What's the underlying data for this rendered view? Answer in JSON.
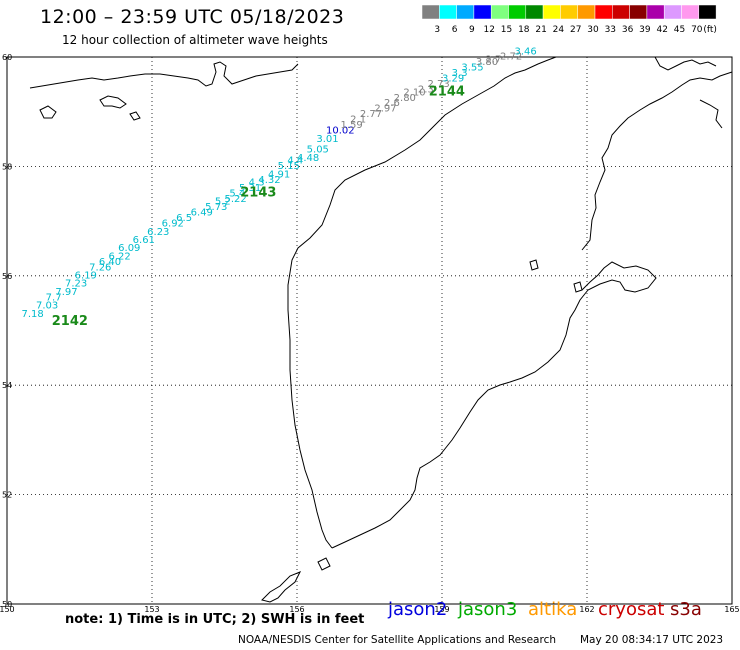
{
  "header": {
    "title": "12:00 – 23:59 UTC 05/18/2023",
    "subtitle": "12 hour collection of altimeter wave heights"
  },
  "legend": {
    "ticks": [
      "3",
      "6",
      "9",
      "12",
      "15",
      "18",
      "21",
      "24",
      "27",
      "30",
      "33",
      "36",
      "39",
      "42",
      "45",
      "70",
      "(ft)"
    ],
    "colors": [
      "#808080",
      "#00ffff",
      "#00aaff",
      "#0000ff",
      "#7fff7f",
      "#00cc00",
      "#008800",
      "#ffff00",
      "#ffcc00",
      "#ff9900",
      "#ff0000",
      "#cc0000",
      "#880000",
      "#aa00aa",
      "#dd99ff",
      "#ff99ee",
      "#000000"
    ]
  },
  "axes": {
    "lon_labels": [
      "150",
      "153",
      "156",
      "159",
      "162",
      "165"
    ],
    "lat_labels": [
      "60",
      "58",
      "56",
      "54",
      "52",
      "50"
    ]
  },
  "tracks": [
    {
      "pass": "2142",
      "label_color": "#1a8a1a"
    },
    {
      "pass": "2143",
      "label_color": "#1a8a1a"
    },
    {
      "pass": "2144",
      "label_color": "#1a8a1a"
    }
  ],
  "points": [
    {
      "lon": 150.3,
      "lat": 55.25,
      "value": "7.18",
      "color": "#00bbcc"
    },
    {
      "lon": 150.6,
      "lat": 55.4,
      "value": "7.03",
      "color": "#00bbcc"
    },
    {
      "lon": 150.8,
      "lat": 55.55,
      "value": "7.7",
      "color": "#00bbcc"
    },
    {
      "lon": 151.0,
      "lat": 55.65,
      "value": "7.97",
      "color": "#00bbcc"
    },
    {
      "lon": 151.2,
      "lat": 55.8,
      "value": "7.23",
      "color": "#00bbcc"
    },
    {
      "lon": 151.4,
      "lat": 55.95,
      "value": "6.19",
      "color": "#00bbcc"
    },
    {
      "lon": 151.7,
      "lat": 56.1,
      "value": "7.26",
      "color": "#00bbcc"
    },
    {
      "lon": 151.9,
      "lat": 56.2,
      "value": "6.40",
      "color": "#00bbcc"
    },
    {
      "lon": 152.1,
      "lat": 56.3,
      "value": "6.22",
      "color": "#00bbcc"
    },
    {
      "lon": 152.3,
      "lat": 56.45,
      "value": "6.09",
      "color": "#00bbcc"
    },
    {
      "lon": 152.6,
      "lat": 56.6,
      "value": "6.61",
      "color": "#00bbcc"
    },
    {
      "lon": 152.9,
      "lat": 56.75,
      "value": "6.23",
      "color": "#00bbcc"
    },
    {
      "lon": 153.2,
      "lat": 56.9,
      "value": "6.92",
      "color": "#00bbcc"
    },
    {
      "lon": 153.5,
      "lat": 57.0,
      "value": "6.5",
      "color": "#00bbcc"
    },
    {
      "lon": 153.8,
      "lat": 57.1,
      "value": "6.49",
      "color": "#00bbcc"
    },
    {
      "lon": 154.1,
      "lat": 57.2,
      "value": "5.73",
      "color": "#00bbcc"
    },
    {
      "lon": 154.3,
      "lat": 57.3,
      "value": "5.2",
      "color": "#00bbcc"
    },
    {
      "lon": 154.5,
      "lat": 57.35,
      "value": "5.22",
      "color": "#00bbcc"
    },
    {
      "lon": 154.6,
      "lat": 57.45,
      "value": "5.4",
      "color": "#00bbcc"
    },
    {
      "lon": 154.8,
      "lat": 57.55,
      "value": "5.31",
      "color": "#00bbcc"
    },
    {
      "lon": 155.0,
      "lat": 57.65,
      "value": "4.3",
      "color": "#00bbcc"
    },
    {
      "lon": 155.2,
      "lat": 57.7,
      "value": "4.32",
      "color": "#00bbcc"
    },
    {
      "lon": 155.4,
      "lat": 57.8,
      "value": "4.91",
      "color": "#00bbcc"
    },
    {
      "lon": 155.6,
      "lat": 57.95,
      "value": "5.15",
      "color": "#00bbcc"
    },
    {
      "lon": 155.8,
      "lat": 58.05,
      "value": "4.4",
      "color": "#00bbcc"
    },
    {
      "lon": 156.0,
      "lat": 58.1,
      "value": "4.48",
      "color": "#00bbcc"
    },
    {
      "lon": 156.2,
      "lat": 58.25,
      "value": "5.05",
      "color": "#00bbcc"
    },
    {
      "lon": 156.4,
      "lat": 58.45,
      "value": "3.01",
      "color": "#00bbcc"
    },
    {
      "lon": 156.6,
      "lat": 58.6,
      "value": "10.02",
      "color": "#0000cc"
    },
    {
      "lon": 156.9,
      "lat": 58.7,
      "value": "1.59",
      "color": "#808080"
    },
    {
      "lon": 157.1,
      "lat": 58.8,
      "value": "2.1",
      "color": "#808080"
    },
    {
      "lon": 157.3,
      "lat": 58.9,
      "value": "2.77",
      "color": "#808080"
    },
    {
      "lon": 157.6,
      "lat": 59.0,
      "value": "2.97",
      "color": "#808080"
    },
    {
      "lon": 157.8,
      "lat": 59.1,
      "value": "2.6",
      "color": "#808080"
    },
    {
      "lon": 158.0,
      "lat": 59.2,
      "value": "2.80",
      "color": "#808080"
    },
    {
      "lon": 158.2,
      "lat": 59.3,
      "value": "2.10",
      "color": "#808080"
    },
    {
      "lon": 158.5,
      "lat": 59.35,
      "value": "2.3",
      "color": "#808080"
    },
    {
      "lon": 158.7,
      "lat": 59.45,
      "value": "2.73",
      "color": "#808080"
    },
    {
      "lon": 159.0,
      "lat": 59.55,
      "value": "3.29",
      "color": "#00bbcc"
    },
    {
      "lon": 159.2,
      "lat": 59.65,
      "value": "3.3",
      "color": "#00bbcc"
    },
    {
      "lon": 159.4,
      "lat": 59.75,
      "value": "3.55",
      "color": "#00bbcc"
    },
    {
      "lon": 159.7,
      "lat": 59.85,
      "value": "3.80",
      "color": "#808080"
    },
    {
      "lon": 159.9,
      "lat": 59.9,
      "value": "2.7",
      "color": "#808080"
    },
    {
      "lon": 160.2,
      "lat": 59.95,
      "value": "2.72",
      "color": "#808080"
    },
    {
      "lon": 160.5,
      "lat": 60.05,
      "value": "3.46",
      "color": "#00bbcc"
    }
  ],
  "note": "note: 1) Time is in UTC; 2) SWH is in feet",
  "satellites": [
    {
      "name": "jason2",
      "color": "#0000dd"
    },
    {
      "name": "jason3",
      "color": "#00aa00"
    },
    {
      "name": "altika",
      "color": "#ff9900"
    },
    {
      "name": "cryosat",
      "color": "#cc0000"
    },
    {
      "name": "s3a",
      "color": "#880000"
    }
  ],
  "footer": {
    "credit": "NOAA/NESDIS Center for Satellite Applications and Research",
    "timestamp": "May 20 08:34:17 UTC 2023"
  }
}
